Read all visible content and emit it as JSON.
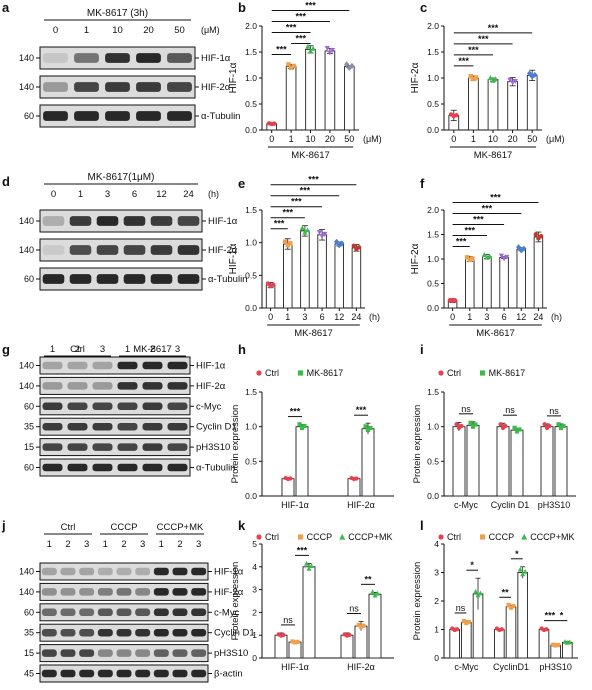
{
  "panels": {
    "a": {
      "letter": "a",
      "header": "MK-8617 (3h)",
      "unit": "(μM)",
      "lanes": [
        "0",
        "1",
        "10",
        "20",
        "50"
      ],
      "markers": [
        "140",
        "140",
        "60"
      ],
      "proteins": [
        "HIF-1α",
        "HIF-2α",
        "α-Tubulin"
      ],
      "intensity": [
        [
          0.12,
          0.55,
          0.9,
          0.95,
          0.7
        ],
        [
          0.35,
          0.8,
          0.85,
          0.85,
          0.8
        ],
        [
          0.95,
          0.95,
          0.95,
          0.95,
          0.95
        ]
      ]
    },
    "d": {
      "letter": "d",
      "header": "MK-8617(1μM)",
      "unit": "(h)",
      "lanes": [
        "0",
        "1",
        "3",
        "6",
        "12",
        "24"
      ],
      "markers": [
        "140",
        "140",
        "60"
      ],
      "proteins": [
        "HIF-1α",
        "HIF-2α",
        "α-Tubulin"
      ],
      "intensity": [
        [
          0.25,
          0.85,
          0.95,
          0.9,
          0.85,
          0.8
        ],
        [
          0.1,
          0.75,
          0.8,
          0.8,
          0.85,
          0.9
        ],
        [
          0.95,
          0.95,
          0.95,
          0.95,
          0.95,
          0.95
        ]
      ]
    },
    "g": {
      "letter": "g",
      "groups": [
        "Ctrl",
        "MK-8617"
      ],
      "lanes": [
        "1",
        "2",
        "3",
        "1",
        "2",
        "3"
      ],
      "markers": [
        "140",
        "140",
        "60",
        "35",
        "15",
        "60"
      ],
      "proteins": [
        "HIF-1α",
        "HIF-2α",
        "c-Myc",
        "Cyclin D1",
        "pH3S10",
        "α-Tubulin"
      ],
      "intensity": [
        [
          0.3,
          0.3,
          0.3,
          0.95,
          0.95,
          0.95
        ],
        [
          0.35,
          0.35,
          0.35,
          0.9,
          0.9,
          0.9
        ],
        [
          0.85,
          0.8,
          0.8,
          0.8,
          0.85,
          0.8
        ],
        [
          0.85,
          0.85,
          0.85,
          0.8,
          0.85,
          0.85
        ],
        [
          0.8,
          0.8,
          0.8,
          0.8,
          0.85,
          0.8
        ],
        [
          0.95,
          0.95,
          0.95,
          0.95,
          0.95,
          0.95
        ]
      ]
    },
    "j": {
      "letter": "j",
      "groups": [
        "Ctrl",
        "CCCP",
        "CCCP+MK"
      ],
      "lanes": [
        "1",
        "2",
        "3",
        "1",
        "2",
        "3",
        "1",
        "2",
        "3"
      ],
      "markers": [
        "140",
        "140",
        "60",
        "35",
        "15",
        "45"
      ],
      "proteins": [
        "HIF-1α",
        "HIF-2α",
        "c-Myc",
        "Cyclin D1",
        "pH3S10",
        "β-actin"
      ],
      "intensity": [
        [
          0.3,
          0.3,
          0.3,
          0.25,
          0.25,
          0.25,
          0.95,
          0.95,
          0.95
        ],
        [
          0.4,
          0.4,
          0.4,
          0.5,
          0.55,
          0.45,
          0.95,
          0.95,
          0.95
        ],
        [
          0.6,
          0.6,
          0.6,
          0.7,
          0.7,
          0.7,
          0.9,
          0.9,
          0.9
        ],
        [
          0.75,
          0.75,
          0.75,
          0.9,
          0.9,
          0.9,
          0.95,
          0.95,
          0.95
        ],
        [
          0.8,
          0.8,
          0.8,
          0.45,
          0.45,
          0.45,
          0.65,
          0.65,
          0.65
        ],
        [
          0.95,
          0.95,
          0.95,
          0.95,
          0.95,
          0.95,
          0.95,
          0.95,
          0.95
        ]
      ]
    },
    "b": {
      "letter": "b",
      "ylabel": "HIF-1α",
      "xlabel": "MK-8617",
      "unit": "(μM)"
    },
    "c": {
      "letter": "c",
      "ylabel": "HIF-2α",
      "xlabel": "MK-8617",
      "unit": "(μM)"
    },
    "e": {
      "letter": "e",
      "ylabel": "HIF-1α",
      "xlabel": "MK-8617",
      "unit": "(h)"
    },
    "f": {
      "letter": "f",
      "ylabel": "HIF-2α",
      "xlabel": "MK-8617",
      "unit": "(h)"
    },
    "h": {
      "letter": "h",
      "ylabel": "Protein expression"
    },
    "i": {
      "letter": "i",
      "ylabel": "Protein expression"
    },
    "k": {
      "letter": "k",
      "ylabel": "Protein expression"
    },
    "l": {
      "letter": "l",
      "ylabel": "Protein expression"
    }
  },
  "chart_data": [
    {
      "id": "b",
      "type": "bar",
      "ylabel": "HIF-1α",
      "xlabel": "MK-8617",
      "unit": "(μM)",
      "categories": [
        "0",
        "1",
        "10",
        "20",
        "50"
      ],
      "values": [
        0.12,
        1.22,
        1.55,
        1.52,
        1.22
      ],
      "errors": [
        0.02,
        0.04,
        0.07,
        0.05,
        0.02
      ],
      "colors": [
        "#e8414e",
        "#f0a04b",
        "#3cba4c",
        "#9c6ad0",
        "#8a8ea6"
      ],
      "markers": [
        "circle",
        "square",
        "triangle",
        "triangle-down",
        "diamond"
      ],
      "ylim": [
        0,
        2.0
      ],
      "yticks": [
        "0.0",
        "0.5",
        "1.0",
        "1.5",
        "2.0"
      ],
      "sig": [
        {
          "from": 0,
          "to": 1,
          "label": "***"
        },
        {
          "from": 1,
          "to": 2,
          "label": "***"
        },
        {
          "from": 0,
          "to": 2,
          "label": "***"
        },
        {
          "from": 0,
          "to": 3,
          "label": "***"
        },
        {
          "from": 0,
          "to": 4,
          "label": "***"
        }
      ]
    },
    {
      "id": "c",
      "type": "bar",
      "ylabel": "HIF-2α",
      "xlabel": "MK-8617",
      "unit": "(μM)",
      "categories": [
        "0",
        "1",
        "10",
        "20",
        "50"
      ],
      "values": [
        0.28,
        1.0,
        0.97,
        0.93,
        1.05
      ],
      "errors": [
        0.1,
        0.04,
        0.03,
        0.08,
        0.1
      ],
      "colors": [
        "#e8414e",
        "#f0a04b",
        "#3cba4c",
        "#9c6ad0",
        "#4a7fd0"
      ],
      "markers": [
        "circle",
        "square",
        "triangle",
        "triangle-down",
        "diamond"
      ],
      "ylim": [
        0,
        2.0
      ],
      "yticks": [
        "0.0",
        "0.5",
        "1.0",
        "1.5",
        "2.0"
      ],
      "sig": [
        {
          "from": 0,
          "to": 1,
          "label": "***"
        },
        {
          "from": 0,
          "to": 2,
          "label": "***"
        },
        {
          "from": 0,
          "to": 3,
          "label": "***"
        },
        {
          "from": 0,
          "to": 4,
          "label": "***"
        }
      ]
    },
    {
      "id": "e",
      "type": "bar",
      "ylabel": "HIF-1α",
      "xlabel": "MK-8617",
      "unit": "(h)",
      "categories": [
        "0",
        "1",
        "3",
        "6",
        "12",
        "24"
      ],
      "values": [
        0.35,
        0.98,
        1.18,
        1.12,
        0.98,
        0.92
      ],
      "errors": [
        0.04,
        0.08,
        0.08,
        0.08,
        0.03,
        0.05
      ],
      "colors": [
        "#e8414e",
        "#f0a04b",
        "#3cba4c",
        "#9c6ad0",
        "#4a7fd0",
        "#c0392b"
      ],
      "markers": [
        "circle",
        "square",
        "triangle",
        "triangle-down",
        "diamond",
        "circle"
      ],
      "ylim": [
        0,
        1.5
      ],
      "yticks": [
        "0.0",
        "0.5",
        "1.0",
        "1.5"
      ],
      "sig": [
        {
          "from": 0,
          "to": 1,
          "label": "***"
        },
        {
          "from": 0,
          "to": 2,
          "label": "***"
        },
        {
          "from": 0,
          "to": 3,
          "label": "***"
        },
        {
          "from": 0,
          "to": 4,
          "label": "***"
        },
        {
          "from": 0,
          "to": 5,
          "label": "***"
        }
      ]
    },
    {
      "id": "f",
      "type": "bar",
      "ylabel": "HIF-2α",
      "xlabel": "MK-8617",
      "unit": "(h)",
      "categories": [
        "0",
        "1",
        "3",
        "6",
        "12",
        "24"
      ],
      "values": [
        0.15,
        1.0,
        1.05,
        1.03,
        1.2,
        1.45
      ],
      "errors": [
        0.04,
        0.05,
        0.04,
        0.02,
        0.03,
        0.1
      ],
      "colors": [
        "#e8414e",
        "#f0a04b",
        "#3cba4c",
        "#9c6ad0",
        "#4a7fd0",
        "#c0392b"
      ],
      "markers": [
        "circle",
        "square",
        "triangle",
        "triangle-down",
        "diamond",
        "circle"
      ],
      "ylim": [
        0,
        2.0
      ],
      "yticks": [
        "0.0",
        "0.5",
        "1.0",
        "1.5",
        "2.0"
      ],
      "sig": [
        {
          "from": 0,
          "to": 1,
          "label": "***"
        },
        {
          "from": 0,
          "to": 2,
          "label": "***"
        },
        {
          "from": 0,
          "to": 3,
          "label": "***"
        },
        {
          "from": 0,
          "to": 4,
          "label": "***"
        },
        {
          "from": 0,
          "to": 5,
          "label": "***"
        }
      ]
    },
    {
      "id": "h",
      "type": "bar",
      "ylabel": "Protein expression",
      "categories": [
        "HIF-1α",
        "HIF-2α"
      ],
      "series": [
        {
          "name": "Ctrl",
          "color": "#e8414e",
          "marker": "circle",
          "values": [
            0.25,
            0.25
          ],
          "errors": [
            0.01,
            0.01
          ]
        },
        {
          "name": "MK-8617",
          "color": "#3cba4c",
          "marker": "square",
          "values": [
            1.0,
            0.97
          ],
          "errors": [
            0.03,
            0.08
          ]
        }
      ],
      "ylim": [
        0,
        1.5
      ],
      "yticks": [
        "0.0",
        "0.5",
        "1.0",
        "1.5"
      ],
      "sig": [
        {
          "cat": 0,
          "label": "***"
        },
        {
          "cat": 1,
          "label": "***"
        }
      ]
    },
    {
      "id": "i",
      "type": "bar",
      "ylabel": "Protein expression",
      "categories": [
        "c-Myc",
        "Cyclin D1",
        "pH3S10"
      ],
      "series": [
        {
          "name": "Ctrl",
          "color": "#e8414e",
          "marker": "circle",
          "values": [
            1.0,
            1.0,
            1.0
          ],
          "errors": [
            0.06,
            0.05,
            0.04
          ]
        },
        {
          "name": "MK-8617",
          "color": "#3cba4c",
          "marker": "square",
          "values": [
            1.02,
            0.95,
            1.0
          ],
          "errors": [
            0.05,
            0.02,
            0.04
          ]
        }
      ],
      "ylim": [
        0,
        1.5
      ],
      "yticks": [
        "0.0",
        "0.5",
        "1.0",
        "1.5"
      ],
      "sig": [
        {
          "cat": 0,
          "label": "ns"
        },
        {
          "cat": 1,
          "label": "ns"
        },
        {
          "cat": 2,
          "label": "ns"
        }
      ]
    },
    {
      "id": "k",
      "type": "bar",
      "ylabel": "Protein expression",
      "categories": [
        "HIF-1α",
        "HIF-2α"
      ],
      "series": [
        {
          "name": "Ctrl",
          "color": "#e8414e",
          "marker": "circle",
          "values": [
            1.0,
            1.0
          ],
          "errors": [
            0.1,
            0.1
          ]
        },
        {
          "name": "CCCP",
          "color": "#f0a04b",
          "marker": "square",
          "values": [
            0.7,
            1.4
          ],
          "errors": [
            0.05,
            0.2
          ]
        },
        {
          "name": "CCCP+MK",
          "color": "#3cba4c",
          "marker": "triangle",
          "values": [
            4.0,
            2.8
          ],
          "errors": [
            0.15,
            0.08
          ]
        }
      ],
      "ylim": [
        0,
        5
      ],
      "yticks": [
        "0",
        "1",
        "2",
        "3",
        "4",
        "5"
      ],
      "sig": [
        {
          "cat": 0,
          "from": 0,
          "to": 1,
          "label": "ns"
        },
        {
          "cat": 0,
          "from": 1,
          "to": 2,
          "label": "***"
        },
        {
          "cat": 1,
          "from": 0,
          "to": 1,
          "label": "ns"
        },
        {
          "cat": 1,
          "from": 1,
          "to": 2,
          "label": "**"
        }
      ]
    },
    {
      "id": "l",
      "type": "bar",
      "ylabel": "Protein expression",
      "categories": [
        "c-Myc",
        "CyclinD1",
        "pH3S10"
      ],
      "series": [
        {
          "name": "Ctrl",
          "color": "#e8414e",
          "marker": "circle",
          "values": [
            1.0,
            1.0,
            1.0
          ],
          "errors": [
            0.05,
            0.03,
            0.03
          ]
        },
        {
          "name": "CCCP",
          "color": "#f0a04b",
          "marker": "square",
          "values": [
            1.25,
            1.8,
            0.45
          ],
          "errors": [
            0.05,
            0.05,
            0.05
          ]
        },
        {
          "name": "CCCP+MK",
          "color": "#3cba4c",
          "marker": "triangle",
          "values": [
            2.25,
            3.0,
            0.55
          ],
          "errors": [
            0.55,
            0.2,
            0.03
          ]
        }
      ],
      "ylim": [
        0,
        4
      ],
      "yticks": [
        "0",
        "1",
        "2",
        "3",
        "4"
      ],
      "sig": [
        {
          "cat": 0,
          "from": 0,
          "to": 1,
          "label": "ns"
        },
        {
          "cat": 0,
          "from": 1,
          "to": 2,
          "label": "*"
        },
        {
          "cat": 1,
          "from": 0,
          "to": 1,
          "label": "**"
        },
        {
          "cat": 1,
          "from": 1,
          "to": 2,
          "label": "*"
        },
        {
          "cat": 2,
          "from": 0,
          "to": 1,
          "label": "***"
        },
        {
          "cat": 2,
          "from": 1,
          "to": 2,
          "label": "*"
        }
      ]
    }
  ]
}
